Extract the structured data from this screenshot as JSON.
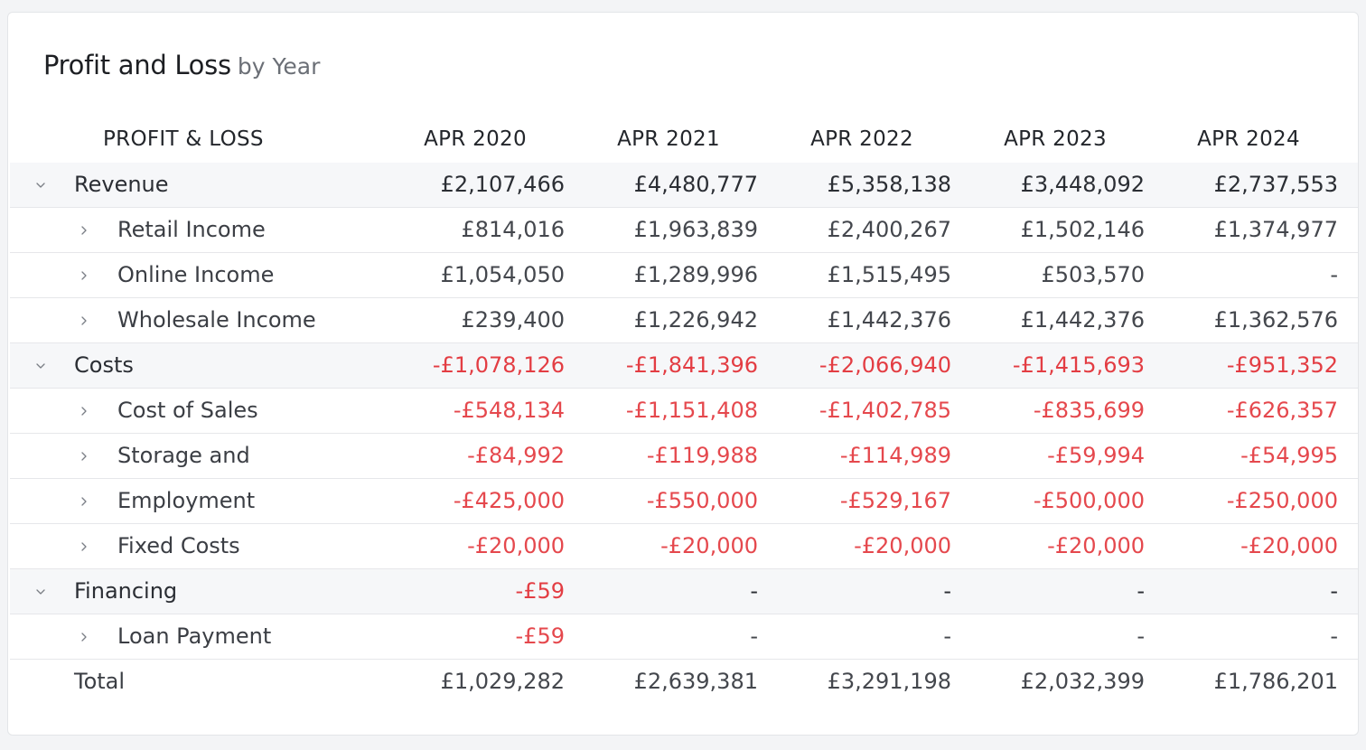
{
  "title": {
    "main": "Profit and Loss",
    "sub": "by Year"
  },
  "table": {
    "label_header": "PROFIT & LOSS",
    "columns": [
      "APR 2020",
      "APR 2021",
      "APR 2022",
      "APR 2023",
      "APR 2024"
    ],
    "rows": [
      {
        "type": "group",
        "label": "Revenue",
        "values": [
          "£2,107,466",
          "£4,480,777",
          "£5,358,138",
          "£3,448,092",
          "£2,737,553"
        ]
      },
      {
        "type": "child",
        "label": "Retail Income",
        "values": [
          "£814,016",
          "£1,963,839",
          "£2,400,267",
          "£1,502,146",
          "£1,374,977"
        ]
      },
      {
        "type": "child",
        "label": "Online Income",
        "values": [
          "£1,054,050",
          "£1,289,996",
          "£1,515,495",
          "£503,570",
          "-"
        ]
      },
      {
        "type": "child",
        "label": "Wholesale Income",
        "values": [
          "£239,400",
          "£1,226,942",
          "£1,442,376",
          "£1,442,376",
          "£1,362,576"
        ]
      },
      {
        "type": "group",
        "label": "Costs",
        "values": [
          "-£1,078,126",
          "-£1,841,396",
          "-£2,066,940",
          "-£1,415,693",
          "-£951,352"
        ]
      },
      {
        "type": "child",
        "label": "Cost of Sales",
        "values": [
          "-£548,134",
          "-£1,151,408",
          "-£1,402,785",
          "-£835,699",
          "-£626,357"
        ]
      },
      {
        "type": "child",
        "label": "Storage and",
        "values": [
          "-£84,992",
          "-£119,988",
          "-£114,989",
          "-£59,994",
          "-£54,995"
        ]
      },
      {
        "type": "child",
        "label": "Employment",
        "values": [
          "-£425,000",
          "-£550,000",
          "-£529,167",
          "-£500,000",
          "-£250,000"
        ]
      },
      {
        "type": "child",
        "label": "Fixed Costs",
        "values": [
          "-£20,000",
          "-£20,000",
          "-£20,000",
          "-£20,000",
          "-£20,000"
        ]
      },
      {
        "type": "group",
        "label": "Financing",
        "values": [
          "-£59",
          "-",
          "-",
          "-",
          "-"
        ]
      },
      {
        "type": "child",
        "label": "Loan Payment",
        "values": [
          "-£59",
          "-",
          "-",
          "-",
          "-"
        ]
      },
      {
        "type": "total",
        "label": "Total",
        "values": [
          "£1,029,282",
          "£2,639,381",
          "£3,291,198",
          "£2,032,399",
          "£1,786,201"
        ]
      }
    ]
  },
  "colors": {
    "negative": "#e5484d",
    "group_background": "#f6f7f9"
  }
}
